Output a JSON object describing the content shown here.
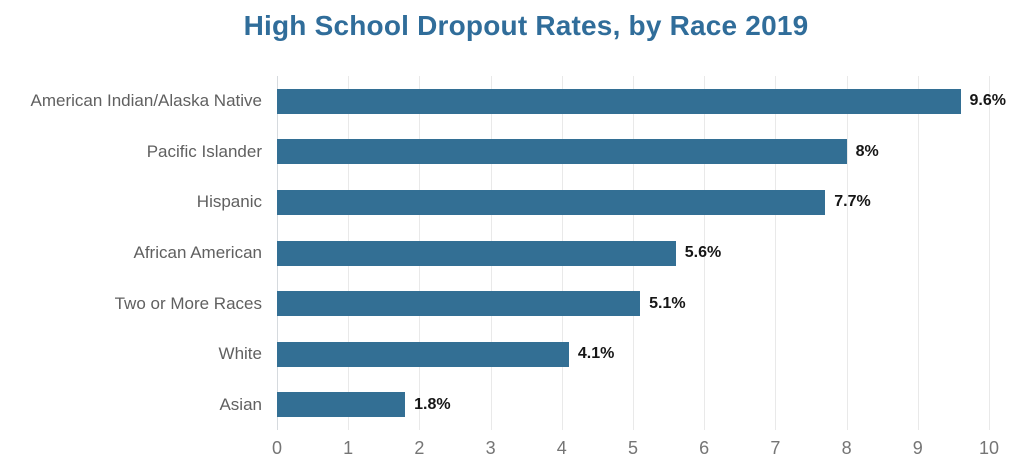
{
  "chart_data": {
    "type": "bar",
    "orientation": "horizontal",
    "title": "High School Dropout Rates, by Race 2019",
    "categories": [
      "American Indian/Alaska Native",
      "Pacific Islander",
      "Hispanic",
      "African American",
      "Two or More Races",
      "White",
      "Asian"
    ],
    "values": [
      9.6,
      8,
      7.7,
      5.6,
      5.1,
      4.1,
      1.8
    ],
    "value_labels": [
      "9.6%",
      "8%",
      "7.7%",
      "5.6%",
      "5.1%",
      "4.1%",
      "1.8%"
    ],
    "xlabel": "",
    "ylabel": "",
    "xlim": [
      0,
      10
    ],
    "xticks": [
      "0",
      "1",
      "2",
      "3",
      "4",
      "5",
      "6",
      "7",
      "8",
      "9",
      "10"
    ],
    "grid": "vertical-only",
    "legend": "none",
    "colors": {
      "bar": "#336f94",
      "title": "#306d9a",
      "category_label": "#606060",
      "tick_label": "#757575",
      "value_label": "#161616",
      "gridline": "#e9e9e9",
      "axis_line": "#d6dade",
      "background": "#ffffff"
    }
  }
}
